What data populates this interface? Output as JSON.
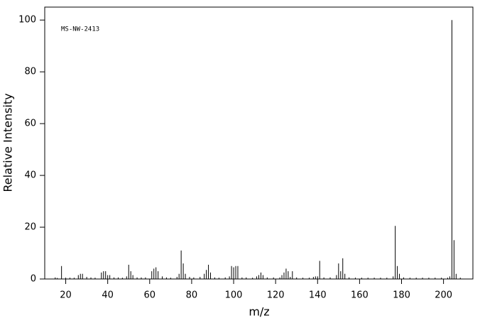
{
  "chart_data": {
    "type": "stem",
    "annotation": "MS-NW-2413",
    "x_label": "m/z",
    "y_label": "Relative Intensity",
    "x": [
      15,
      16,
      18,
      20,
      22,
      24,
      26,
      27,
      28,
      30,
      32,
      34,
      37,
      38,
      39,
      40,
      41,
      43,
      45,
      47,
      49,
      50,
      51,
      52,
      54,
      56,
      58,
      61,
      62,
      63,
      64,
      66,
      68,
      70,
      73,
      74,
      75,
      76,
      77,
      79,
      81,
      84,
      86,
      87,
      88,
      89,
      91,
      93,
      96,
      98,
      99,
      100,
      101,
      102,
      104,
      106,
      109,
      111,
      112,
      113,
      114,
      116,
      119,
      122,
      123,
      124,
      125,
      126,
      127,
      128,
      130,
      133,
      136,
      138,
      139,
      140,
      141,
      143,
      146,
      149,
      150,
      151,
      152,
      153,
      155,
      158,
      161,
      164,
      167,
      170,
      173,
      176,
      177,
      178,
      179,
      181,
      184,
      187,
      190,
      193,
      196,
      199,
      202,
      203,
      204,
      205,
      206,
      208
    ],
    "values": [
      0.6,
      0.4,
      5,
      0.5,
      0.5,
      0.5,
      1.5,
      2,
      2,
      0.8,
      0.6,
      0.5,
      2.5,
      3,
      3,
      1.5,
      1.5,
      0.6,
      0.6,
      0.5,
      1,
      5.5,
      3,
      1.5,
      0.6,
      0.6,
      0.6,
      3,
      4,
      4.5,
      3,
      1,
      0.6,
      0.5,
      0.8,
      2,
      11,
      6,
      2,
      0.8,
      0.6,
      0.8,
      2,
      3.5,
      5.5,
      2.5,
      0.6,
      0.5,
      0.6,
      1,
      5,
      4.5,
      5,
      5,
      0.6,
      0.6,
      0.5,
      1,
      1.5,
      2.5,
      1.5,
      0.6,
      0.6,
      0.6,
      1.5,
      2.5,
      4,
      3,
      0.8,
      3,
      0.6,
      0.5,
      0.5,
      0.8,
      1,
      1,
      7,
      0.6,
      0.6,
      1.5,
      6,
      3,
      8,
      2,
      0.6,
      0.5,
      0.5,
      0.5,
      0.5,
      0.5,
      0.5,
      1,
      20.5,
      5,
      2,
      0.6,
      0.5,
      0.5,
      0.5,
      0.5,
      0.5,
      0.5,
      0.5,
      1,
      100,
      15,
      2,
      0.5
    ],
    "color": "#000000",
    "xlim": [
      10,
      214
    ],
    "ylim": [
      0,
      105
    ],
    "xticks": [
      20,
      40,
      60,
      80,
      100,
      120,
      140,
      160,
      180,
      200
    ],
    "yticks": [
      0,
      20,
      40,
      60,
      80,
      100
    ]
  }
}
